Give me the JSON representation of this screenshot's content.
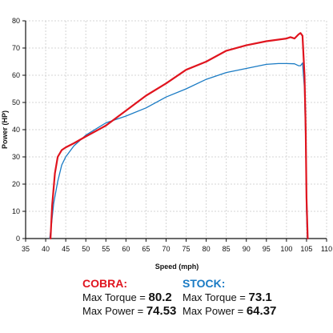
{
  "chart_data": {
    "type": "line",
    "xlabel": "Speed (mph)",
    "ylabel": "Power (HP)",
    "xlim": [
      35,
      110
    ],
    "ylim": [
      0,
      80
    ],
    "x_ticks": [
      35,
      40,
      45,
      50,
      55,
      60,
      65,
      70,
      75,
      80,
      85,
      90,
      95,
      100,
      105,
      110
    ],
    "y_ticks": [
      0,
      10,
      20,
      30,
      40,
      50,
      60,
      70,
      80
    ],
    "grid": true,
    "series": [
      {
        "name": "COBRA:",
        "color": "#e0141e",
        "x": [
          41.2,
          41.6,
          42.3,
          43.0,
          44.0,
          45.0,
          47.0,
          50.0,
          55.0,
          60.0,
          65.0,
          70.0,
          75.0,
          80.0,
          85.0,
          90.0,
          95.0,
          100.0,
          101.0,
          102.0,
          103.0,
          103.5,
          104.0,
          104.5,
          104.8,
          105.0,
          105.3
        ],
        "y": [
          0,
          12,
          24,
          30,
          32.5,
          33.5,
          35,
          37.5,
          41.5,
          47,
          52.5,
          57,
          62,
          65,
          69,
          71,
          72.5,
          73.5,
          74,
          73.5,
          75,
          75.5,
          74.5,
          60,
          40,
          15,
          0
        ]
      },
      {
        "name": "STOCK:",
        "color": "#1a7bc4",
        "x": [
          41.0,
          41.5,
          42.0,
          43.0,
          44.0,
          45.0,
          47.0,
          50.0,
          55.0,
          60.0,
          65.0,
          70.0,
          75.0,
          80.0,
          85.0,
          90.0,
          95.0,
          98.0,
          100.0,
          102.0,
          103.0,
          103.5,
          104.0,
          104.5,
          104.8,
          105.0,
          105.2
        ],
        "y": [
          0,
          6,
          13,
          21,
          27,
          30,
          34,
          38,
          42.5,
          45,
          48,
          52,
          55,
          58.5,
          61,
          62.5,
          64,
          64.3,
          64.3,
          64.2,
          63.5,
          63.5,
          64.5,
          55,
          35,
          10,
          0
        ]
      }
    ]
  },
  "legend": {
    "cobra": {
      "title": "COBRA:",
      "torque_label": "Max Torque = ",
      "torque_value": "80.2",
      "power_label": "Max Power = ",
      "power_value": "74.53"
    },
    "stock": {
      "title": "STOCK:",
      "torque_label": "Max Torque = ",
      "torque_value": "73.1",
      "power_label": "Max Power = ",
      "power_value": "64.37"
    }
  }
}
